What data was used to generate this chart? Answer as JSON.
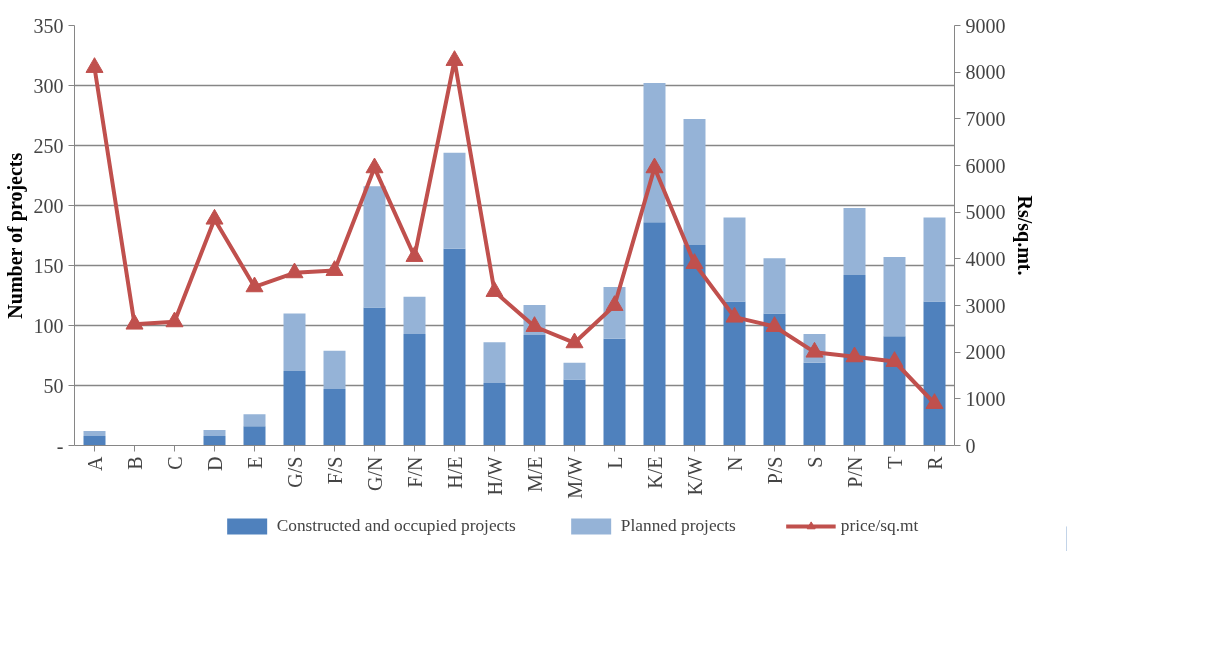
{
  "chart_data": {
    "type": "bar",
    "stacked": true,
    "ylabel": "Number of projects",
    "y2label": "Rs/sq.mt.",
    "categories": [
      "A",
      "B",
      "C",
      "D",
      "E",
      "G/S",
      "F/S",
      "G/N",
      "F/N",
      "H/E",
      "H/W",
      "M/E",
      "M/W",
      "L",
      "K/E",
      "K/W",
      "N",
      "P/S",
      "S",
      "P/N",
      "T",
      "R"
    ],
    "series": [
      {
        "name": "Constructed and occupied projects",
        "color": "#4f81bd",
        "values": [
          8,
          0,
          0,
          8,
          16,
          62,
          47,
          115,
          93,
          164,
          52,
          92,
          55,
          89,
          186,
          167,
          120,
          110,
          69,
          142,
          91,
          120
        ]
      },
      {
        "name": "Planned projects",
        "color": "#95b3d7",
        "values": [
          4,
          0,
          0,
          5,
          10,
          48,
          32,
          101,
          31,
          80,
          34,
          25,
          14,
          43,
          116,
          105,
          70,
          46,
          24,
          56,
          66,
          70
        ]
      },
      {
        "name": "price/sq.mt",
        "type": "line",
        "axis": "y2",
        "color": "#c0504d",
        "marker": "triangle",
        "values": [
          8100,
          2600,
          2650,
          4850,
          3400,
          3700,
          3750,
          5950,
          4050,
          8250,
          3300,
          2550,
          2200,
          3000,
          5950,
          3900,
          2750,
          2550,
          2000,
          1900,
          1800,
          900
        ]
      }
    ],
    "ylim": [
      0,
      350
    ],
    "yticks": [
      {
        "value": 0,
        "label": "-"
      },
      50,
      100,
      150,
      200,
      250,
      300,
      350
    ],
    "y2lim": [
      0,
      9000
    ],
    "y2ticks": [
      0,
      1000,
      2000,
      3000,
      4000,
      5000,
      6000,
      7000,
      8000,
      9000
    ],
    "grid": "y",
    "legend": "bottom"
  }
}
